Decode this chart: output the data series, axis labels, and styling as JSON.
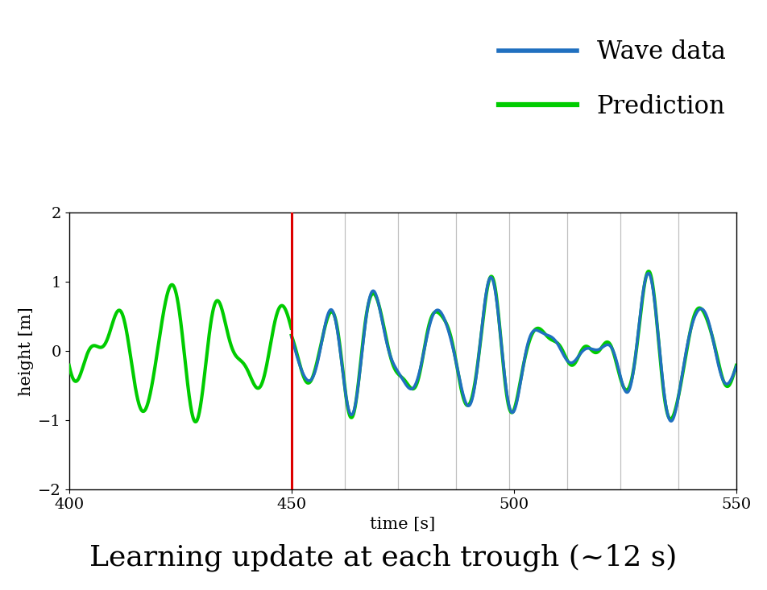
{
  "title": "Learning update at each trough (~12 s)",
  "xlabel": "time [s]",
  "ylabel": "height [m]",
  "xlim": [
    400,
    550
  ],
  "ylim": [
    -2,
    2
  ],
  "xticks": [
    400,
    450,
    500,
    550
  ],
  "yticks": [
    -2,
    -1,
    0,
    1,
    2
  ],
  "wave_color": "#2070C0",
  "pred_color": "#00CC00",
  "red_line_x": 450,
  "red_line_color": "#DD0000",
  "gray_lines": [
    462,
    474,
    487,
    499,
    512,
    524,
    537
  ],
  "wave_label": "Wave data",
  "pred_label": "Prediction",
  "legend_fontsize": 22,
  "title_fontsize": 26,
  "axis_fontsize": 15,
  "tick_fontsize": 14,
  "wave_linewidth": 2.5,
  "pred_linewidth": 3.0,
  "background_color": "#ffffff",
  "t_start": 400,
  "t_end": 550,
  "dt": 0.05
}
